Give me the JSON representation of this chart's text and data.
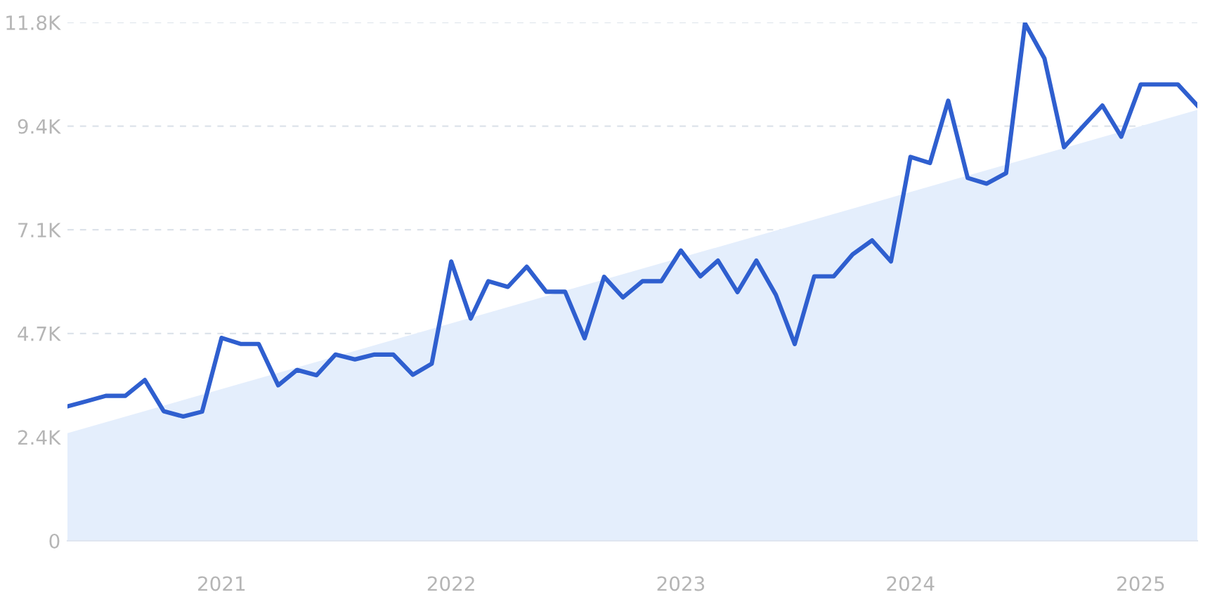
{
  "chart_data": {
    "type": "line",
    "x": [
      "2020-05",
      "2020-06",
      "2020-07",
      "2020-08",
      "2020-09",
      "2020-10",
      "2020-11",
      "2020-12",
      "2021-01",
      "2021-02",
      "2021-03",
      "2021-04",
      "2021-05",
      "2021-06",
      "2021-07",
      "2021-08",
      "2021-09",
      "2021-10",
      "2021-11",
      "2021-12",
      "2022-01",
      "2022-02",
      "2022-03",
      "2022-04",
      "2022-05",
      "2022-06",
      "2022-07",
      "2022-08",
      "2022-09",
      "2022-10",
      "2022-11",
      "2022-12",
      "2023-01",
      "2023-02",
      "2023-03",
      "2023-04",
      "2023-05",
      "2023-06",
      "2023-07",
      "2023-08",
      "2023-09",
      "2023-10",
      "2023-11",
      "2023-12",
      "2024-01",
      "2024-02",
      "2024-03",
      "2024-04",
      "2024-05",
      "2024-06",
      "2024-07",
      "2024-08",
      "2024-09",
      "2024-10",
      "2024-11",
      "2024-12",
      "2025-01",
      "2025-02",
      "2025-03",
      "2025-04"
    ],
    "series": [
      {
        "type": "area",
        "color": "#e4eefc",
        "x": [
          "2020-05",
          "2025-04"
        ],
        "values": [
          2450,
          9810
        ]
      },
      {
        "color": "#2f5fcf",
        "values": [
          3060,
          3180,
          3300,
          3300,
          3660,
          2950,
          2830,
          2940,
          4620,
          4480,
          4480,
          3540,
          3890,
          3770,
          4240,
          4130,
          4240,
          4240,
          3780,
          4030,
          6360,
          5060,
          5910,
          5780,
          6240,
          5670,
          5670,
          4610,
          6010,
          5540,
          5910,
          5910,
          6610,
          6020,
          6380,
          5660,
          6380,
          5600,
          4480,
          6020,
          6020,
          6520,
          6840,
          6360,
          8740,
          8600,
          10020,
          8260,
          8130,
          8370,
          11780,
          10980,
          8960,
          9430,
          9910,
          9200,
          10390,
          10390,
          10390,
          9910
        ]
      }
    ],
    "xlim": [
      "2020-05",
      "2025-04"
    ],
    "xticks": [
      "2021",
      "2022",
      "2023",
      "2024",
      "2025"
    ],
    "ylim": [
      0,
      11800
    ],
    "yticks": [
      0,
      {
        "value": 2360,
        "label": "2.4K"
      },
      {
        "value": 4720,
        "label": "4.7K"
      },
      {
        "value": 7080,
        "label": "7.1K"
      },
      {
        "value": 9440,
        "label": "9.4K"
      },
      {
        "value": 11800,
        "label": "11.8K"
      }
    ],
    "grid": "y",
    "line_style": "solid",
    "marker": "none"
  }
}
